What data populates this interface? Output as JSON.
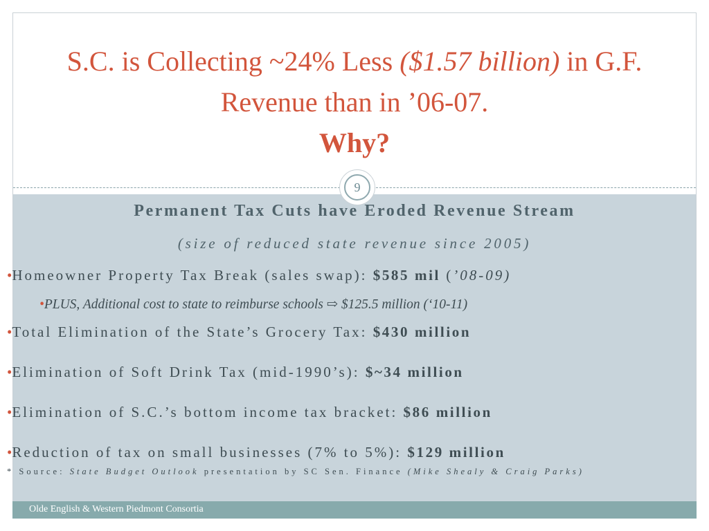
{
  "title": {
    "part1": "S.C. is Collecting ~24% Less ",
    "part2_italic": "($1.57 billion)",
    "part3": " in G.F. Revenue than in ’06-07.",
    "part4_bold": "Why?"
  },
  "slide_number": "9",
  "heading": "Permanent Tax Cuts have Eroded Revenue Stream",
  "subheading": "(size of reduced state revenue since 2005)",
  "bullet_char": "•",
  "bullets": [
    {
      "text": "Homeowner Property Tax Break (sales swap): ",
      "amount": "$585 mil",
      "suffix_open": " (",
      "suffix_italic": "’08-09)"
    },
    {
      "text": "PLUS, Additional cost to state to reimburse schools ⇨ $125.5 million (‘10-11)"
    },
    {
      "text": "Total Elimination of the State’s Grocery Tax: ",
      "amount": "$430 million"
    },
    {
      "text": "Elimination of Soft Drink Tax (mid-1990’s): ",
      "amount": "$~34 million"
    },
    {
      "text": "Elimination of S.C.’s bottom income tax bracket: ",
      "amount": "$86 million"
    },
    {
      "text": "Reduction of tax on small businesses (7% to 5%): ",
      "amount": "$129 million"
    }
  ],
  "source": {
    "prefix": "* Source: ",
    "title_italic": "State Budget Outlook",
    "middle": " presentation by SC Sen. Finance ",
    "authors_italic": "(Mike Shealy & Craig Parks)"
  },
  "footer": "Olde English & Western Piedmont Consortia",
  "colors": {
    "title": "#d2553c",
    "content_bg": "#c8d4db",
    "footer_bg": "#87aaac",
    "text": "#3f4d53"
  }
}
